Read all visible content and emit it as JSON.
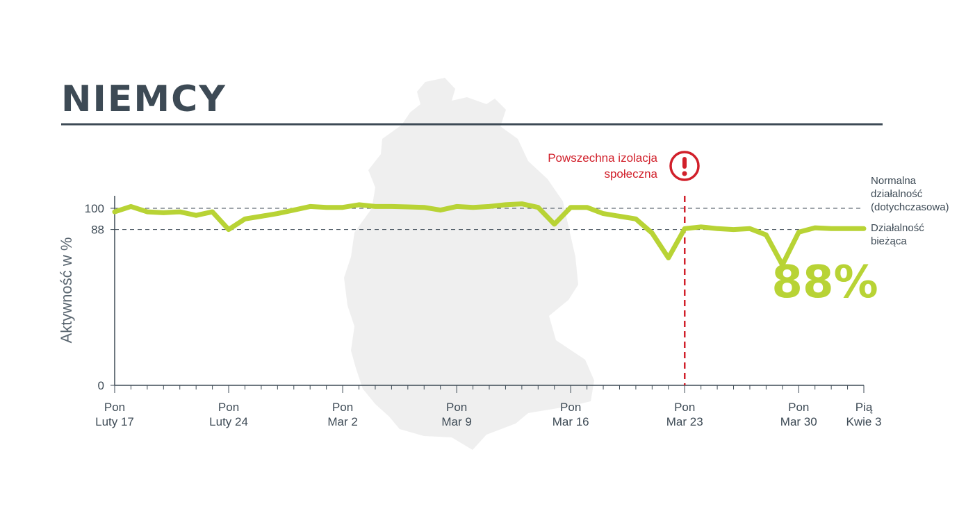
{
  "title": "NIEMCY",
  "colors": {
    "line": "#b8d335",
    "title": "#3d4a55",
    "alert": "#d11f2a",
    "map": "#efefef",
    "axis": "#3d4a55"
  },
  "chart_data": {
    "type": "line",
    "ylabel": "Aktywność w %",
    "ylim": [
      0,
      100
    ],
    "y_ticks": [
      {
        "value": 0,
        "label": "0"
      },
      {
        "value": 88,
        "label": "88"
      },
      {
        "value": 100,
        "label": "100"
      }
    ],
    "x_labels": [
      {
        "day": 0,
        "line1": "Pon",
        "line2": "Luty 17"
      },
      {
        "day": 7,
        "line1": "Pon",
        "line2": "Luty 24"
      },
      {
        "day": 14,
        "line1": "Pon",
        "line2": "Mar 2"
      },
      {
        "day": 21,
        "line1": "Pon",
        "line2": "Mar 9"
      },
      {
        "day": 28,
        "line1": "Pon",
        "line2": "Mar 16"
      },
      {
        "day": 35,
        "line1": "Pon",
        "line2": "Mar 23"
      },
      {
        "day": 42,
        "line1": "Pon",
        "line2": "Mar 30"
      },
      {
        "day": 46,
        "line1": "Pią",
        "line2": "Kwie 3"
      }
    ],
    "series": [
      {
        "values": [
          98,
          101,
          98,
          97.5,
          98,
          96,
          98,
          88,
          94,
          95.5,
          97,
          99,
          101,
          100.5,
          100.5,
          102,
          101,
          101,
          100.8,
          100.5,
          99,
          101,
          100.5,
          101,
          102,
          102.5,
          100.5,
          91,
          100.5,
          100.5,
          97,
          95.5,
          94,
          86,
          72,
          88.5,
          89.5,
          88.5,
          88,
          88.5,
          85,
          68,
          86.5,
          89,
          88.5,
          88.5,
          88.5
        ]
      }
    ],
    "reference_lines": [
      {
        "value": 100,
        "label_lines": [
          "Normalna",
          "działalność",
          "(dotychczasowa)"
        ]
      },
      {
        "value": 88,
        "label_lines": [
          "Działalność",
          "bieżąca"
        ]
      }
    ],
    "event": {
      "day": 35,
      "label_lines": [
        "Powszechna izolacja",
        "społeczna"
      ],
      "icon": "exclamation-circle-icon"
    },
    "highlight_value": "88%"
  }
}
